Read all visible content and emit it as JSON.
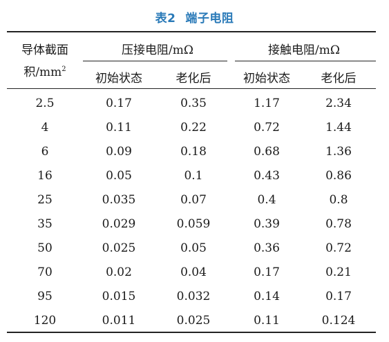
{
  "caption": {
    "number": "表2",
    "title": "端子电阻"
  },
  "header": {
    "col0_line1": "导体截面",
    "col0_line2_prefix": "积/mm",
    "col0_line2_sup": "2",
    "group1": "压接电阻/mΩ",
    "group2": "接触电阻/mΩ",
    "sub_initial": "初始状态",
    "sub_aged": "老化后"
  },
  "colors": {
    "caption": "#2a7ab8",
    "text": "#1a1a1a",
    "rule": "#222222"
  },
  "rows": [
    [
      "2.5",
      "0.17",
      "0.35",
      "1.17",
      "2.34"
    ],
    [
      "4",
      "0.11",
      "0.22",
      "0.72",
      "1.44"
    ],
    [
      "6",
      "0.09",
      "0.18",
      "0.68",
      "1.36"
    ],
    [
      "16",
      "0.05",
      "0.1",
      "0.43",
      "0.86"
    ],
    [
      "25",
      "0.035",
      "0.07",
      "0.4",
      "0.8"
    ],
    [
      "35",
      "0.029",
      "0.059",
      "0.39",
      "0.78"
    ],
    [
      "50",
      "0.025",
      "0.05",
      "0.36",
      "0.72"
    ],
    [
      "70",
      "0.02",
      "0.04",
      "0.17",
      "0.21"
    ],
    [
      "95",
      "0.015",
      "0.032",
      "0.14",
      "0.17"
    ],
    [
      "120",
      "0.011",
      "0.025",
      "0.11",
      "0.124"
    ]
  ]
}
